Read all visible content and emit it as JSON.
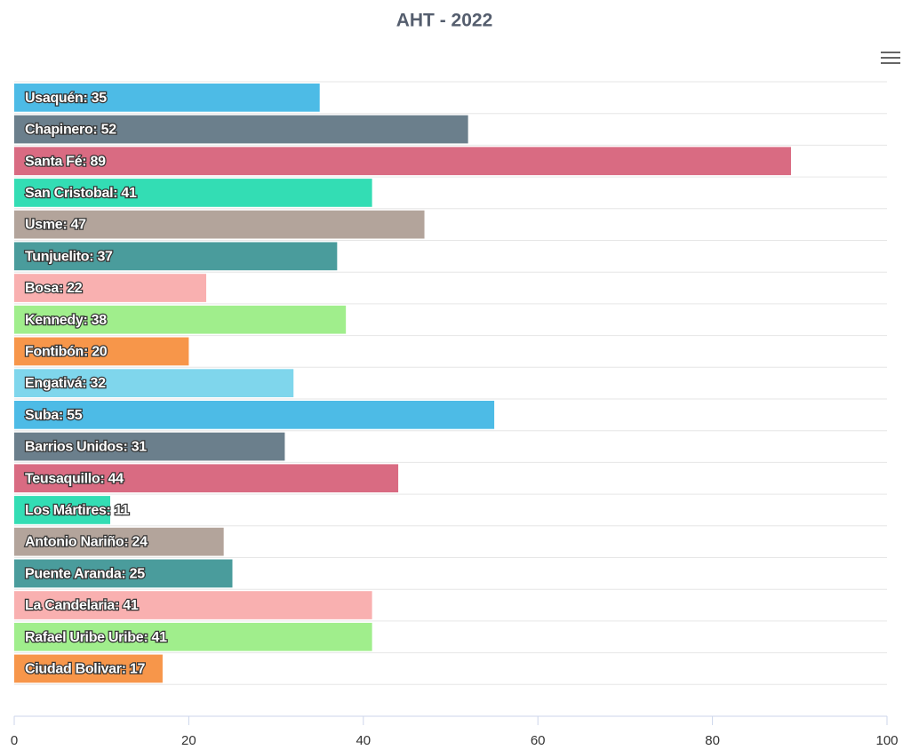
{
  "chart_data": {
    "type": "bar",
    "orientation": "horizontal",
    "title": "AHT - 2022",
    "categories": [
      "Usaquén",
      "Chapinero",
      "Santa Fé",
      "San Cristobal",
      "Usme",
      "Tunjuelito",
      "Bosa",
      "Kennedy",
      "Fontibón",
      "Engativá",
      "Suba",
      "Barrios Unidos",
      "Teusaquillo",
      "Los Mártires",
      "Antonio Nariño",
      "Puente Aranda",
      "La Candelaria",
      "Rafael Uribe Uribe",
      "Ciudad Bolivar"
    ],
    "values": [
      35,
      52,
      89,
      41,
      47,
      37,
      22,
      38,
      20,
      32,
      55,
      31,
      44,
      11,
      24,
      25,
      41,
      41,
      17
    ],
    "label_separator": ": ",
    "colors": [
      "#4dbbe6",
      "#6b7f8c",
      "#d96b82",
      "#33ddb4",
      "#b3a49b",
      "#4a9c9c",
      "#f9b0b0",
      "#a0ee8c",
      "#f7964a",
      "#7fd6ec"
    ],
    "xlim": [
      0,
      100
    ],
    "xticks": [
      0,
      20,
      40,
      60,
      80,
      100
    ],
    "grid": true
  }
}
